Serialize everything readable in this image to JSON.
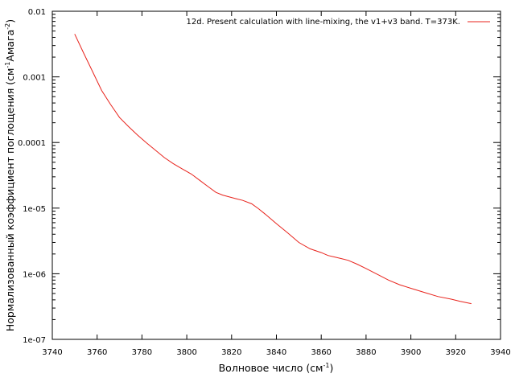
{
  "chart_data": {
    "type": "line",
    "title": "",
    "xlabel": {
      "text": "Волновое число (см",
      "sup": "-1",
      "tail": ")"
    },
    "ylabel": {
      "text": "Нормализованный коэффициент поглощения (см",
      "sup1": "-1",
      "mid": "Амага",
      "sup2": "-2",
      "tail": ")"
    },
    "xlim": [
      3740,
      3940
    ],
    "ylim": [
      1e-07,
      0.01
    ],
    "yscale": "log",
    "grid": false,
    "legend_position": "top-right",
    "xticks": [
      "3740",
      "3760",
      "3780",
      "3800",
      "3820",
      "3840",
      "3860",
      "3880",
      "3900",
      "3920",
      "3940"
    ],
    "yticks": [
      "0.01",
      "0.001",
      "0.0001",
      "1e-05",
      "1e-06",
      "1e-07"
    ],
    "series": [
      {
        "name": "12d. Present calculation with line-mixing, the v1+v3 band. T=373K.",
        "color": "#e8231c",
        "x": [
          3750,
          3754,
          3758,
          3762,
          3766,
          3770,
          3774,
          3778,
          3782,
          3786,
          3790,
          3794,
          3798,
          3802,
          3806,
          3810,
          3813,
          3816,
          3819,
          3822,
          3825,
          3829,
          3832,
          3835,
          3840,
          3845,
          3850,
          3855,
          3860,
          3863,
          3866,
          3869,
          3872,
          3876,
          3880,
          3885,
          3890,
          3895,
          3900,
          3906,
          3912,
          3918,
          3922,
          3927
        ],
        "y": [
          0.0045,
          0.0023,
          0.0012,
          0.00062,
          0.00038,
          0.00024,
          0.000175,
          0.00013,
          9.88e-05,
          7.64e-05,
          5.88e-05,
          4.75e-05,
          3.95e-05,
          3.31e-05,
          2.62e-05,
          2.07e-05,
          1.74e-05,
          1.58e-05,
          1.48e-05,
          1.39e-05,
          1.31e-05,
          1.16e-05,
          9.8e-06,
          8.1e-06,
          5.8e-06,
          4.2e-06,
          3e-06,
          2.4e-06,
          2.1e-06,
          1.9e-06,
          1.8e-06,
          1.7e-06,
          1.6e-06,
          1.4e-06,
          1.2e-06,
          9.8e-07,
          8e-07,
          6.8e-07,
          6e-07,
          5.2e-07,
          4.5e-07,
          4.1e-07,
          3.8e-07,
          3.5e-07
        ]
      }
    ]
  }
}
